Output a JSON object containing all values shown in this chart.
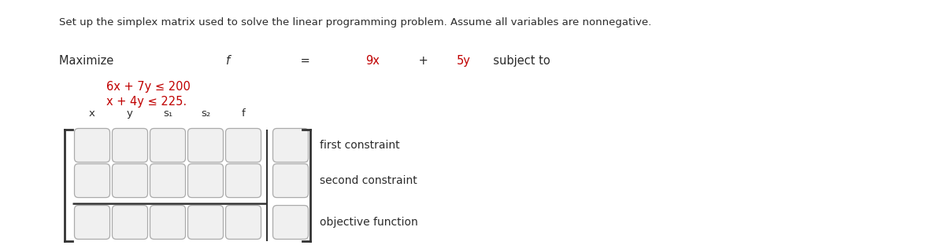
{
  "title": "Set up the simplex matrix used to solve the linear programming problem. Assume all variables are nonnegative.",
  "col_headers": [
    "x",
    "y",
    "s₁",
    "s₂",
    "f"
  ],
  "row_labels": [
    "first constraint",
    "second constraint",
    "objective function"
  ],
  "n_cols_main": 5,
  "n_rows": 3,
  "bg_color": "#ffffff",
  "text_color": "#2b2b2b",
  "red_color": "#c00000",
  "cell_bg": "#f0f0f0",
  "cell_border": "#aaaaaa",
  "bracket_color": "#333333",
  "divider_color": "#333333",
  "title_fontsize": 9.5,
  "body_fontsize": 10.5,
  "header_fontsize": 9.5,
  "label_fontsize": 10.0
}
